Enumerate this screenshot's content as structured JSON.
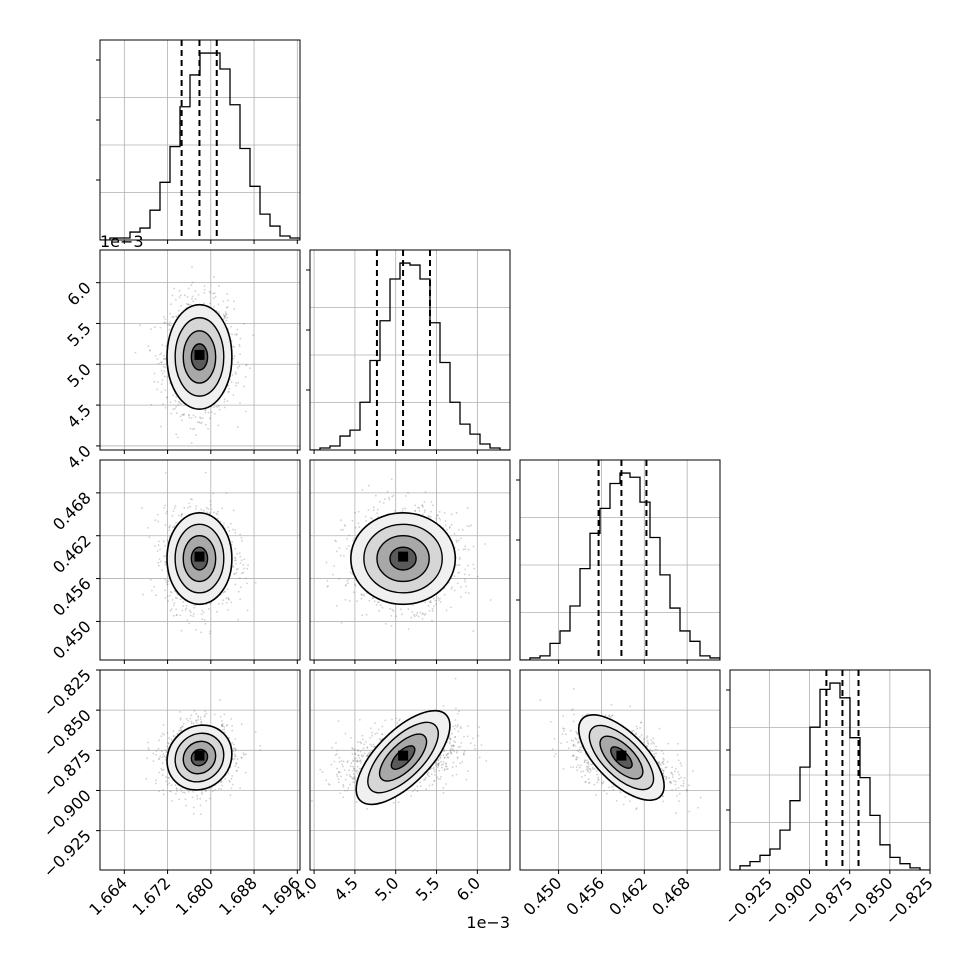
{
  "chart_data": {
    "type": "corner",
    "grid": true,
    "parameters": [
      {
        "range": [
          1.6595,
          1.6965
        ],
        "ticks": [
          "1.664",
          "1.672",
          "1.680",
          "1.688",
          "1.696"
        ],
        "tick_values": [
          1.664,
          1.672,
          1.68,
          1.688,
          1.696
        ],
        "offset_label": "",
        "quantiles": [
          1.6746,
          1.6779,
          1.6811
        ]
      },
      {
        "range": [
          3.95,
          6.4
        ],
        "ticks": [
          "4.0",
          "4.5",
          "5.0",
          "5.5",
          "6.0"
        ],
        "tick_values": [
          4.0,
          4.5,
          5.0,
          5.5,
          6.0
        ],
        "offset_label": "1e−3",
        "quantiles": [
          4.77,
          5.09,
          5.42
        ]
      },
      {
        "range": [
          0.4446,
          0.4726
        ],
        "ticks": [
          "0.450",
          "0.456",
          "0.462",
          "0.468"
        ],
        "tick_values": [
          0.45,
          0.456,
          0.462,
          0.468
        ],
        "offset_label": "",
        "quantiles": [
          0.4556,
          0.4588,
          0.4623
        ]
      },
      {
        "range": [
          -0.9495,
          -0.825
        ],
        "ticks": [
          "−0.925",
          "−0.900",
          "−0.875",
          "−0.850",
          "−0.825"
        ],
        "tick_values": [
          -0.925,
          -0.9,
          -0.875,
          -0.85,
          -0.825
        ],
        "offset_label": "",
        "quantiles": [
          -0.8895,
          -0.8795,
          -0.8695
        ]
      }
    ],
    "histograms": [
      [
        0,
        1,
        1,
        4,
        6,
        15,
        29,
        47,
        67,
        83,
        94,
        94,
        86,
        68,
        46,
        27,
        13,
        7,
        2,
        1
      ],
      [
        0,
        1,
        2,
        7,
        10,
        24,
        45,
        65,
        86,
        94,
        93,
        86,
        64,
        44,
        24,
        13,
        8,
        3,
        1,
        0
      ],
      [
        0,
        1,
        2,
        8,
        14,
        26,
        44,
        61,
        73,
        85,
        90,
        88,
        76,
        59,
        41,
        25,
        14,
        9,
        2,
        1
      ],
      [
        0,
        2,
        4,
        7,
        10,
        19,
        33,
        49,
        68,
        86,
        89,
        82,
        63,
        44,
        26,
        12,
        6,
        3,
        1,
        0
      ]
    ],
    "pairs": [
      {
        "x": 0,
        "y": 1,
        "cx": 1.6779,
        "cy": 5.09,
        "sx": 0.003,
        "sy": 0.32,
        "rho": 0.0
      },
      {
        "x": 0,
        "y": 2,
        "cx": 1.6779,
        "cy": 0.4588,
        "sx": 0.003,
        "sy": 0.0032,
        "rho": 0.0
      },
      {
        "x": 1,
        "y": 2,
        "cx": 5.09,
        "cy": 0.4588,
        "sx": 0.32,
        "sy": 0.0032,
        "rho": 0.0
      },
      {
        "x": 0,
        "y": 3,
        "cx": 1.6779,
        "cy": -0.8795,
        "sx": 0.003,
        "sy": 0.01,
        "rho": 0.1
      },
      {
        "x": 1,
        "y": 3,
        "cx": 5.09,
        "cy": -0.8795,
        "sx": 0.32,
        "sy": 0.01,
        "rho": 0.35
      },
      {
        "x": 2,
        "y": 3,
        "cx": 0.4588,
        "cy": -0.8795,
        "sx": 0.0032,
        "sy": 0.01,
        "rho": -0.45
      }
    ]
  }
}
